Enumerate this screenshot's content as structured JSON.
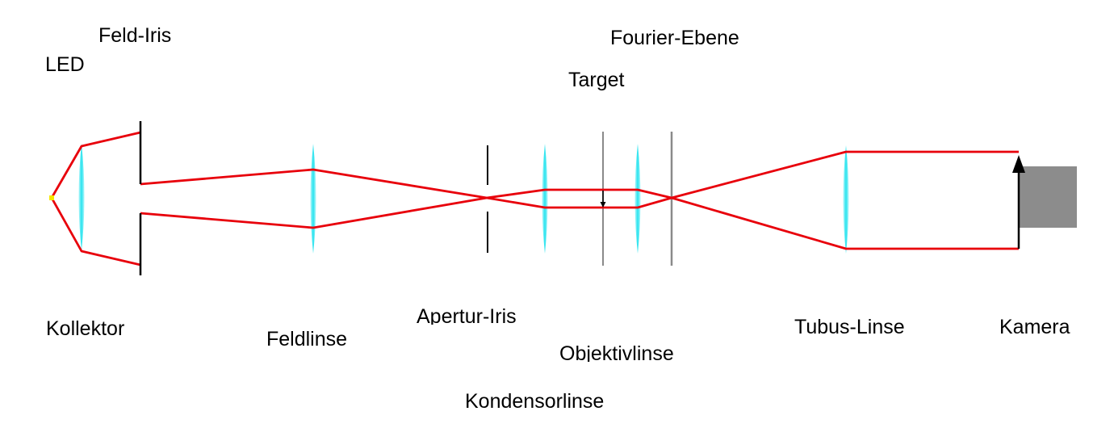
{
  "labels": {
    "led": "LED",
    "feld_iris": "Feld-Iris",
    "fourier_ebene": "Fourier-Ebene",
    "target": "Target",
    "kollektor": "Kollektor",
    "feldlinse": "Feldlinse",
    "apertur_iris": "Apertur-Iris",
    "objektivlinse": "Objektivlinse",
    "kondensorlinse": "Kondensorlinse",
    "tubus_linse": "Tubus-Linse",
    "kamera": "Kamera"
  },
  "colors": {
    "ray": "#e8000b",
    "lens": "#33e8f0",
    "iris": "#000000",
    "plane": "#8a8a8a",
    "camera": "#8c8c8c",
    "led": "#f5e600",
    "arrow": "#000000"
  }
}
